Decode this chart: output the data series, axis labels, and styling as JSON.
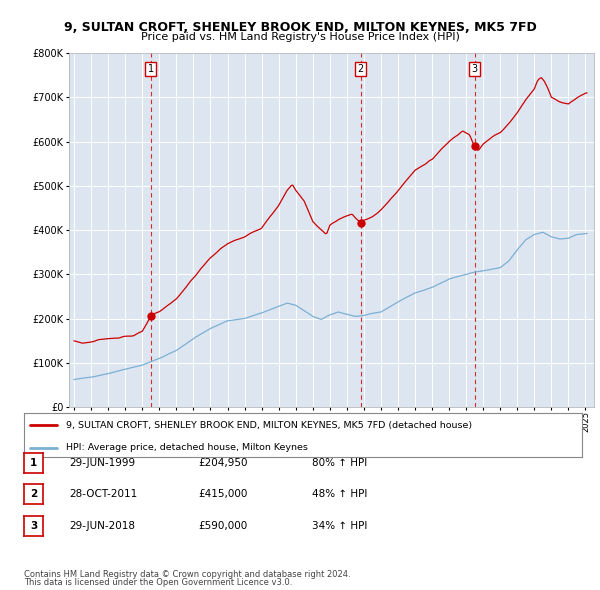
{
  "title1": "9, SULTAN CROFT, SHENLEY BROOK END, MILTON KEYNES, MK5 7FD",
  "title2": "Price paid vs. HM Land Registry's House Price Index (HPI)",
  "legend_line1": "9, SULTAN CROFT, SHENLEY BROOK END, MILTON KEYNES, MK5 7FD (detached house)",
  "legend_line2": "HPI: Average price, detached house, Milton Keynes",
  "footer1": "Contains HM Land Registry data © Crown copyright and database right 2024.",
  "footer2": "This data is licensed under the Open Government Licence v3.0.",
  "transactions": [
    {
      "num": 1,
      "date": "29-JUN-1999",
      "price": 204950,
      "pct": "80%",
      "year": 1999.49
    },
    {
      "num": 2,
      "date": "28-OCT-2011",
      "price": 415000,
      "pct": "48%",
      "year": 2011.82
    },
    {
      "num": 3,
      "date": "29-JUN-2018",
      "price": 590000,
      "pct": "34%",
      "year": 2018.49
    }
  ],
  "red_color": "#cc0000",
  "blue_color": "#7bafd4",
  "plot_bg": "#dde6f0",
  "ylim": [
    0,
    800000
  ],
  "xlim_start": 1994.7,
  "xlim_end": 2025.5
}
